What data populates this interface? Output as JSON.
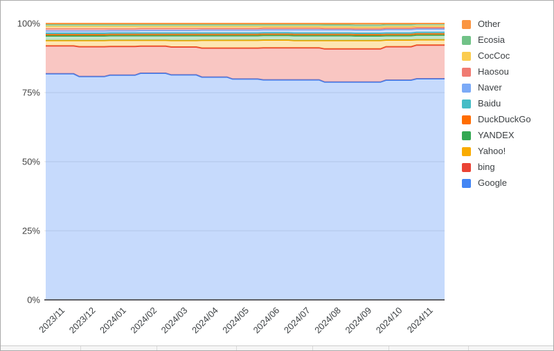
{
  "chart_data": {
    "type": "area",
    "stacked": true,
    "units": "percent",
    "title": "",
    "xlabel": "",
    "ylabel": "",
    "ylim": [
      0,
      100
    ],
    "grid": true,
    "categories": [
      "2023/11",
      "2023/12",
      "2024/01",
      "2024/02",
      "2024/03",
      "2024/04",
      "2024/05",
      "2024/06",
      "2024/07",
      "2024/08",
      "2024/09",
      "2024/10",
      "2024/11"
    ],
    "series": [
      {
        "name": "Google",
        "color": "#4285F4",
        "values": [
          81.8,
          80.8,
          81.3,
          82.0,
          81.4,
          80.6,
          79.9,
          79.6,
          79.6,
          78.8,
          78.8,
          79.5,
          80.0
        ]
      },
      {
        "name": "bing",
        "color": "#EA4335",
        "values": [
          10.1,
          10.8,
          10.4,
          9.8,
          10.1,
          10.5,
          11.2,
          11.6,
          11.6,
          12.0,
          12.0,
          12.1,
          12.2
        ]
      },
      {
        "name": "Yahoo!",
        "color": "#F9AB00",
        "values": [
          1.9,
          2.2,
          2.2,
          2.1,
          2.3,
          2.8,
          2.8,
          2.8,
          2.6,
          3.0,
          3.0,
          2.4,
          1.9
        ]
      },
      {
        "name": "YANDEX",
        "color": "#34A853",
        "values": [
          1.7,
          1.7,
          1.7,
          1.7,
          1.8,
          1.7,
          1.7,
          1.7,
          1.8,
          1.8,
          1.7,
          1.6,
          1.7
        ]
      },
      {
        "name": "DuckDuckGo",
        "color": "#FF6D01",
        "values": [
          0.5,
          0.5,
          0.5,
          0.5,
          0.5,
          0.5,
          0.5,
          0.5,
          0.5,
          0.5,
          0.5,
          0.5,
          0.5
        ]
      },
      {
        "name": "Baidu",
        "color": "#46BDC6",
        "values": [
          0.5,
          0.5,
          0.5,
          0.5,
          0.5,
          0.5,
          0.5,
          0.5,
          0.5,
          0.5,
          0.5,
          0.5,
          0.5
        ]
      },
      {
        "name": "Naver",
        "color": "#7BAAF7",
        "values": [
          0.8,
          0.8,
          0.8,
          0.9,
          0.9,
          1.0,
          1.0,
          1.0,
          1.1,
          1.1,
          1.1,
          1.2,
          1.2
        ]
      },
      {
        "name": "Haosou",
        "color": "#F07B72",
        "values": [
          0.8,
          0.8,
          0.7,
          0.7,
          0.7,
          0.6,
          0.6,
          0.6,
          0.6,
          0.5,
          0.5,
          0.5,
          0.5
        ]
      },
      {
        "name": "CocCoc",
        "color": "#FBCC4F",
        "values": [
          0.8,
          0.8,
          0.8,
          0.7,
          0.7,
          0.7,
          0.7,
          0.6,
          0.6,
          0.6,
          0.6,
          0.6,
          0.6
        ]
      },
      {
        "name": "Ecosia",
        "color": "#71C287",
        "values": [
          0.7,
          0.7,
          0.7,
          0.7,
          0.7,
          0.7,
          0.7,
          0.7,
          0.7,
          0.7,
          0.7,
          0.7,
          0.7
        ]
      },
      {
        "name": "Other",
        "color": "#FA9541",
        "values": [
          0.4,
          0.4,
          0.4,
          0.4,
          0.4,
          0.4,
          0.4,
          0.4,
          0.4,
          0.5,
          0.6,
          0.4,
          0.2
        ]
      }
    ],
    "y_axis": {
      "tick_labels": [
        "0%",
        "25%",
        "50%",
        "75%",
        "100%"
      ],
      "tick_values": [
        0,
        25,
        50,
        75,
        100
      ]
    },
    "legend": {
      "position": "right",
      "items_top_to_bottom": [
        {
          "label": "Other",
          "color": "#FA9541"
        },
        {
          "label": "Ecosia",
          "color": "#71C287"
        },
        {
          "label": "CocCoc",
          "color": "#FBCC4F"
        },
        {
          "label": "Haosou",
          "color": "#F07B72"
        },
        {
          "label": "Naver",
          "color": "#7BAAF7"
        },
        {
          "label": "Baidu",
          "color": "#46BDC6"
        },
        {
          "label": "DuckDuckGo",
          "color": "#FF6D01"
        },
        {
          "label": "YANDEX",
          "color": "#34A853"
        },
        {
          "label": "Yahoo!",
          "color": "#F9AB00"
        },
        {
          "label": "bing",
          "color": "#EA4335"
        },
        {
          "label": "Google",
          "color": "#4285F4"
        }
      ]
    },
    "style": {
      "fill_opacity": 0.3,
      "line_width": 2,
      "gridline_color": "#e3e3e3",
      "baseline_color": "#5f5f64",
      "axis_text_color": "#424242",
      "x_text_color": "#3c4043"
    }
  }
}
